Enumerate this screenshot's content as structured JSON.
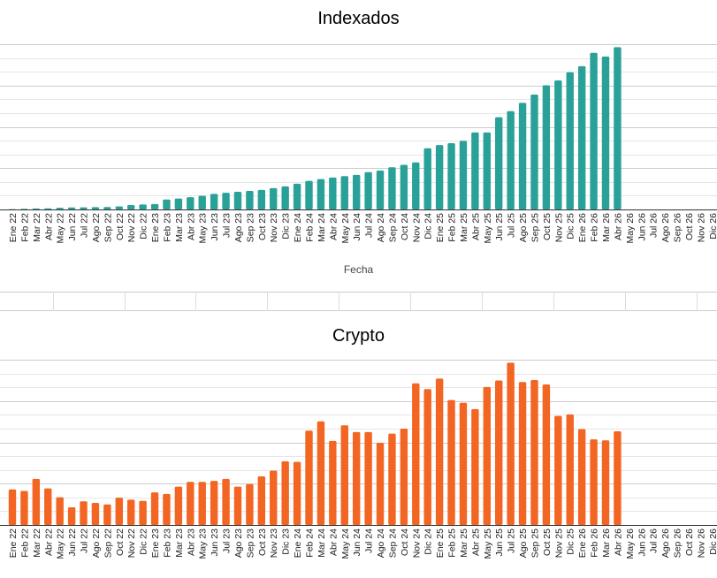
{
  "charts": [
    {
      "title": "Indexados",
      "xlabel": "Fecha",
      "color": "#2aa198"
    },
    {
      "title": "Crypto",
      "xlabel": "",
      "color": "#f26522"
    }
  ],
  "chart_data": [
    {
      "type": "bar",
      "title": "Indexados",
      "xlabel": "Fecha",
      "ylabel": "",
      "grid": true,
      "ylim": [
        0,
        100
      ],
      "categories": [
        "Ene 22",
        "Feb 22",
        "Mar 22",
        "Abr 22",
        "May 22",
        "Jun 22",
        "Jul 22",
        "Ago 22",
        "Sep 22",
        "Oct 22",
        "Nov 22",
        "Dic 22",
        "Ene 23",
        "Feb 23",
        "Mar 23",
        "Abr 23",
        "May 23",
        "Jun 23",
        "Jul 23",
        "Ago 23",
        "Sep 23",
        "Oct 23",
        "Nov 23",
        "Dic 23",
        "Ene 24",
        "Feb 24",
        "Mar 24",
        "Abr 24",
        "May 24",
        "Jun 24",
        "Jul 24",
        "Ago 24",
        "Sep 24",
        "Oct 24",
        "Nov 24",
        "Dic 24",
        "Ene 25",
        "Feb 25",
        "Mar 25",
        "Abr 25",
        "May 25",
        "Jun 25",
        "Jul 25",
        "Ago 25",
        "Sep 25",
        "Oct 25",
        "Nov 25",
        "Dic 25",
        "Ene 26",
        "Feb 26",
        "Mar 26",
        "Abr 26",
        "May 26",
        "Jun 26",
        "Jul 26",
        "Ago 26",
        "Sep 26",
        "Oct 26",
        "Nov 26",
        "Dic 26"
      ],
      "values": [
        0.2,
        0.4,
        0.6,
        0.7,
        1.0,
        1.2,
        1.3,
        1.4,
        1.5,
        1.9,
        2.7,
        3.0,
        3.3,
        6.0,
        6.6,
        7.4,
        8.3,
        9.4,
        10.1,
        10.7,
        11.2,
        11.8,
        12.9,
        14.0,
        15.6,
        17.3,
        18.4,
        19.3,
        20.2,
        20.9,
        22.6,
        23.5,
        25.5,
        27.0,
        28.5,
        37.0,
        39.0,
        40.1,
        41.5,
        46.6,
        46.6,
        55.8,
        59.5,
        64.5,
        69.5,
        75.1,
        78.1,
        83.0,
        86.7,
        94.8,
        92.5,
        98.2,
        0,
        0,
        0,
        0,
        0,
        0,
        0,
        0
      ]
    },
    {
      "type": "bar",
      "title": "Crypto",
      "xlabel": "",
      "ylabel": "",
      "grid": true,
      "ylim": [
        0,
        100
      ],
      "categories": [
        "Ene 22",
        "Feb 22",
        "Mar 22",
        "Abr 22",
        "May 22",
        "Jun 22",
        "Jul 22",
        "Ago 22",
        "Sep 22",
        "Oct 22",
        "Nov 22",
        "Dic 22",
        "Ene 23",
        "Feb 23",
        "Mar 23",
        "Abr 23",
        "May 23",
        "Jun 23",
        "Jul 23",
        "Ago 23",
        "Sep 23",
        "Oct 23",
        "Nov 23",
        "Dic 23",
        "Ene 24",
        "Feb 24",
        "Mar 24",
        "Abr 24",
        "May 24",
        "Jun 24",
        "Jul 24",
        "Ago 24",
        "Sep 24",
        "Oct 24",
        "Nov 24",
        "Dic 24",
        "Ene 25",
        "Feb 25",
        "Mar 25",
        "Abr 25",
        "May 25",
        "Jun 25",
        "Jul 25",
        "Ago 25",
        "Sep 25",
        "Oct 25",
        "Nov 25",
        "Dic 25",
        "Ene 26",
        "Feb 26",
        "Mar 26",
        "Abr 26",
        "May 26",
        "Jun 26",
        "Jul 26",
        "Ago 26",
        "Sep 26",
        "Oct 26",
        "Nov 26",
        "Dic 26"
      ],
      "values": [
        21.5,
        20.6,
        27.9,
        22.1,
        16.8,
        10.7,
        14.3,
        13.4,
        12.4,
        16.5,
        15.3,
        14.6,
        19.7,
        18.8,
        23.2,
        26.1,
        26.1,
        26.7,
        27.9,
        23.2,
        24.7,
        29.4,
        32.9,
        38.5,
        38.2,
        57.1,
        62.7,
        50.9,
        60.3,
        56.2,
        56.2,
        49.7,
        55.3,
        58.3,
        85.7,
        82.2,
        88.6,
        75.6,
        73.9,
        70.1,
        83.5,
        87.4,
        98.2,
        86.5,
        87.7,
        85.0,
        66.0,
        66.9,
        58.0,
        51.8,
        51.2,
        56.7,
        0,
        0,
        0,
        0,
        0,
        0,
        0,
        0
      ]
    }
  ]
}
